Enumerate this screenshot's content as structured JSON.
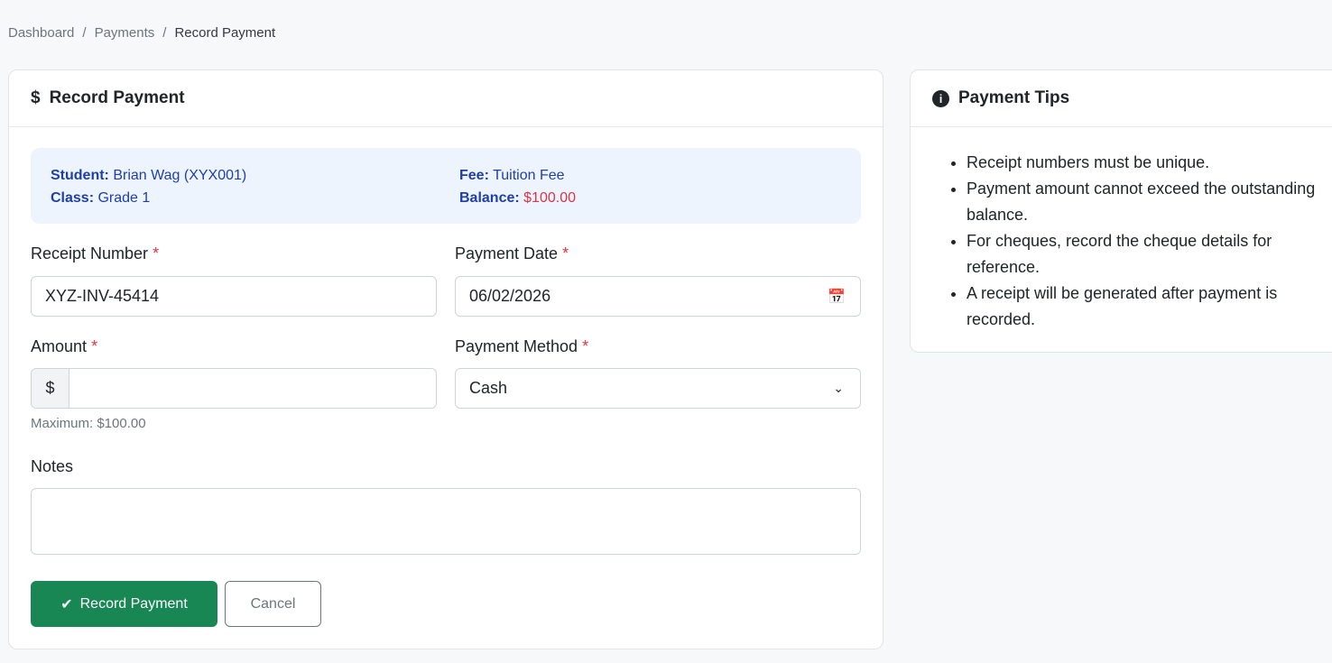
{
  "breadcrumb": [
    "Dashboard",
    "Payments",
    "Record Payment"
  ],
  "form": {
    "title": "Record Payment",
    "student_label": "Student:",
    "student": "Brian Wag (XYX001)",
    "class_label": "Class:",
    "class": "Grade 1",
    "fee_label": "Fee:",
    "fee": "Tuition Fee",
    "balance_label": "Balance:",
    "balance": "$100.00",
    "receipt_label": "Receipt Number",
    "receipt_value": "XYZ-INV-45414",
    "date_label": "Payment Date",
    "date_value": "06/02/2026",
    "amount_label": "Amount",
    "amount_prefix": "$",
    "amount_value": "",
    "amount_help": "Maximum: $100.00",
    "method_label": "Payment Method",
    "method_value": "Cash",
    "notes_label": "Notes",
    "notes_value": "",
    "required": "*",
    "submit": "Record Payment",
    "cancel": "Cancel"
  },
  "tips": {
    "title": "Payment Tips",
    "items": [
      "Receipt numbers must be unique.",
      "Payment amount cannot exceed the outstanding balance.",
      "For cheques, record the cheque details for reference.",
      "A receipt will be generated after payment is recorded."
    ]
  },
  "colors": {
    "primary_button": "#198754",
    "info_bg": "#edf4fe",
    "info_text": "#1e3fa8",
    "required": "#dc3545"
  }
}
